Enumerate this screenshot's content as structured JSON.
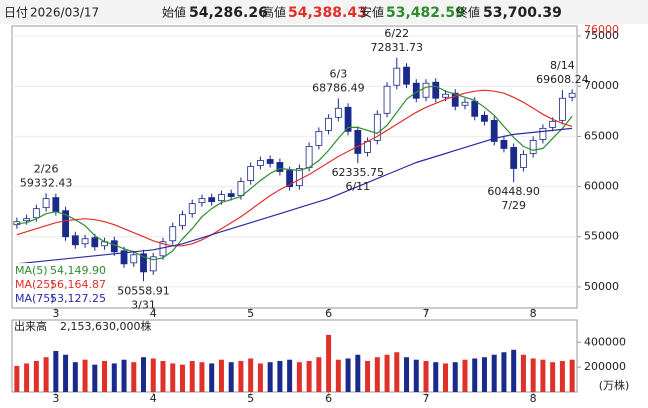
{
  "header": {
    "date_label": "日付",
    "date": "2026/03/17",
    "fields": [
      {
        "name": "始値",
        "value": "54,286.26"
      },
      {
        "name": "高値",
        "value": "54,388.43"
      },
      {
        "name": "安値",
        "value": "53,482.59"
      },
      {
        "name": "終値",
        "value": "53,700.39"
      }
    ]
  },
  "chart_data": [
    {
      "type": "candlestick",
      "categories": [
        null,
        null,
        null,
        null,
        "3",
        null,
        null,
        null,
        null,
        null,
        null,
        null,
        null,
        null,
        "4",
        null,
        null,
        null,
        null,
        null,
        null,
        null,
        null,
        null,
        "5",
        null,
        null,
        null,
        null,
        null,
        null,
        null,
        "6",
        null,
        null,
        null,
        null,
        null,
        null,
        null,
        null,
        null,
        "7",
        null,
        null,
        null,
        null,
        null,
        null,
        null,
        null,
        null,
        null,
        "8",
        null,
        null,
        null,
        null
      ],
      "open": [
        56200,
        56600,
        56900,
        57900,
        58900,
        57600,
        55100,
        54300,
        54900,
        54100,
        54600,
        53600,
        52400,
        53300,
        51600,
        53100,
        54600,
        56100,
        57300,
        58400,
        58900,
        58600,
        59300,
        59100,
        60600,
        62100,
        62700,
        62400,
        61600,
        60100,
        61900,
        64100,
        65600,
        66900,
        67900,
        65600,
        63400,
        64600,
        67300,
        70100,
        71900,
        70300,
        68900,
        70400,
        68900,
        69300,
        68100,
        68500,
        67100,
        66600,
        64600,
        63900,
        61900,
        63300,
        64700,
        65900,
        66600,
        68900
      ],
      "high": [
        56900,
        57200,
        58200,
        59332.43,
        59300,
        58000,
        55500,
        55200,
        55300,
        54900,
        55000,
        54000,
        53600,
        53700,
        53400,
        54900,
        56400,
        57600,
        58700,
        59200,
        59300,
        59600,
        59700,
        60900,
        62400,
        63000,
        63100,
        62800,
        62000,
        62200,
        64400,
        65900,
        67200,
        68786.49,
        68300,
        66000,
        64900,
        67600,
        70400,
        72831.73,
        72300,
        70700,
        70700,
        70800,
        69600,
        69700,
        68800,
        68900,
        67500,
        67000,
        65000,
        64300,
        63600,
        65000,
        66200,
        66900,
        69608.24,
        69700
      ],
      "low": [
        55800,
        56200,
        56500,
        57500,
        57100,
        54600,
        53800,
        53900,
        53600,
        53700,
        53100,
        51900,
        52000,
        50558.91,
        51200,
        52700,
        54200,
        55700,
        56900,
        58000,
        58100,
        58200,
        58600,
        58700,
        60200,
        61700,
        61900,
        61100,
        59600,
        59700,
        61500,
        63700,
        65200,
        66500,
        65100,
        62335.75,
        63000,
        64200,
        66900,
        69700,
        69800,
        68400,
        68500,
        68400,
        68500,
        67600,
        67700,
        66600,
        66100,
        64100,
        63400,
        60448.9,
        61500,
        62900,
        64300,
        65500,
        66200,
        68500
      ],
      "close": [
        56500,
        56800,
        57800,
        58800,
        57500,
        55000,
        54200,
        54800,
        54000,
        54500,
        53500,
        52300,
        53200,
        51500,
        53000,
        54500,
        56000,
        57200,
        58300,
        58800,
        58500,
        59200,
        59000,
        60500,
        62000,
        62600,
        62300,
        61500,
        60000,
        61800,
        64000,
        65500,
        66800,
        67800,
        65500,
        63300,
        64500,
        67200,
        70000,
        71800,
        70200,
        68800,
        70300,
        68800,
        69200,
        68000,
        68400,
        67000,
        66500,
        64500,
        63800,
        61800,
        63200,
        64600,
        65800,
        66500,
        68800,
        69300
      ],
      "up_color": "#ffffff",
      "down_color": "#1a2a8a",
      "outline_color": "#1a2a8a",
      "series": [
        {
          "name": "MA(5)",
          "color": "#2e8b2e",
          "current": {
            "value": 54149.9,
            "label": "54,149.90"
          },
          "values": [
            56300,
            56400,
            56800,
            57300,
            57500,
            57200,
            56700,
            56100,
            55100,
            54500,
            54200,
            53800,
            53500,
            53000,
            52700,
            52900,
            53600,
            54800,
            55800,
            57000,
            57800,
            58400,
            58700,
            59000,
            59800,
            60600,
            61300,
            61800,
            61700,
            61600,
            61900,
            62600,
            63600,
            64800,
            65900,
            65900,
            65600,
            65300,
            66100,
            67400,
            68700,
            69400,
            69900,
            70000,
            69500,
            69200,
            68900,
            68600,
            67900,
            67100,
            66000,
            64900,
            64000,
            63600,
            63800,
            64800,
            65800,
            67000
          ]
        },
        {
          "name": "MA(25)",
          "color": "#e0302a",
          "current": {
            "value": 56164.87,
            "label": "56,164.87"
          },
          "values": [
            55200,
            55500,
            55800,
            56100,
            56400,
            56600,
            56700,
            56800,
            56700,
            56500,
            56200,
            55800,
            55400,
            55000,
            54600,
            54300,
            54100,
            54100,
            54300,
            54700,
            55200,
            55800,
            56400,
            57000,
            57700,
            58400,
            59100,
            59700,
            60200,
            60700,
            61200,
            61800,
            62400,
            63000,
            63500,
            64000,
            64500,
            65000,
            65600,
            66200,
            66800,
            67400,
            67900,
            68300,
            68700,
            69000,
            69300,
            69500,
            69600,
            69500,
            69300,
            68900,
            68400,
            67800,
            67200,
            66700,
            66300,
            66000
          ]
        },
        {
          "name": "MA(75)",
          "color": "#2a2aa8",
          "current": {
            "value": 53127.25,
            "label": "53,127.25"
          },
          "values": [
            52300,
            52400,
            52500,
            52600,
            52700,
            52800,
            52900,
            53000,
            53100,
            53200,
            53300,
            53400,
            53500,
            53600,
            53700,
            53900,
            54100,
            54300,
            54600,
            54900,
            55200,
            55500,
            55800,
            56100,
            56400,
            56700,
            57000,
            57300,
            57600,
            57900,
            58200,
            58500,
            58800,
            59200,
            59600,
            60000,
            60400,
            60800,
            61200,
            61600,
            62000,
            62400,
            62700,
            63000,
            63300,
            63600,
            63900,
            64200,
            64500,
            64800,
            65000,
            65200,
            65300,
            65400,
            65500,
            65600,
            65700,
            65800
          ]
        }
      ],
      "annotations": [
        {
          "date": "2/26",
          "value": 59332.43
        },
        {
          "date": "3/31",
          "value": 50558.91
        },
        {
          "date": "6/3",
          "value": 68786.49
        },
        {
          "date": "6/11",
          "value": 62335.75
        },
        {
          "date": "6/22",
          "value": 72831.73
        },
        {
          "date": "7/29",
          "value": {
            "value": 60448.9,
            "label": "60448.90"
          }
        },
        {
          "date": "8/14",
          "value": 69608.24
        }
      ],
      "ylim": [
        47900,
        76000
      ],
      "ylim_label_color": "#e0302a",
      "yticks": [
        50000,
        55000,
        60000,
        65000,
        70000,
        75000
      ],
      "grid": true
    },
    {
      "type": "bar",
      "title": "出来高",
      "subtitle": "2,153,630,000株",
      "unit_label": "(万株)",
      "categories": [
        null,
        null,
        null,
        null,
        "3",
        null,
        null,
        null,
        null,
        null,
        null,
        null,
        null,
        null,
        "4",
        null,
        null,
        null,
        null,
        null,
        null,
        null,
        null,
        null,
        "5",
        null,
        null,
        null,
        null,
        null,
        null,
        null,
        "6",
        null,
        null,
        null,
        null,
        null,
        null,
        null,
        null,
        null,
        "7",
        null,
        null,
        null,
        null,
        null,
        null,
        null,
        null,
        null,
        null,
        "8",
        null,
        null,
        null,
        null
      ],
      "values": [
        210000,
        230000,
        250000,
        280000,
        330000,
        300000,
        240000,
        260000,
        220000,
        250000,
        230000,
        260000,
        240000,
        280000,
        270000,
        250000,
        230000,
        220000,
        250000,
        240000,
        230000,
        260000,
        240000,
        250000,
        270000,
        230000,
        240000,
        250000,
        260000,
        240000,
        250000,
        280000,
        460000,
        260000,
        270000,
        300000,
        250000,
        280000,
        300000,
        320000,
        280000,
        260000,
        250000,
        240000,
        230000,
        240000,
        260000,
        270000,
        280000,
        300000,
        320000,
        340000,
        300000,
        270000,
        260000,
        240000,
        250000,
        260000
      ],
      "up_color": "#e0302a",
      "down_color": "#1a2a8a",
      "ylim": [
        0,
        475000
      ],
      "yticks": [
        200000,
        400000
      ]
    }
  ]
}
